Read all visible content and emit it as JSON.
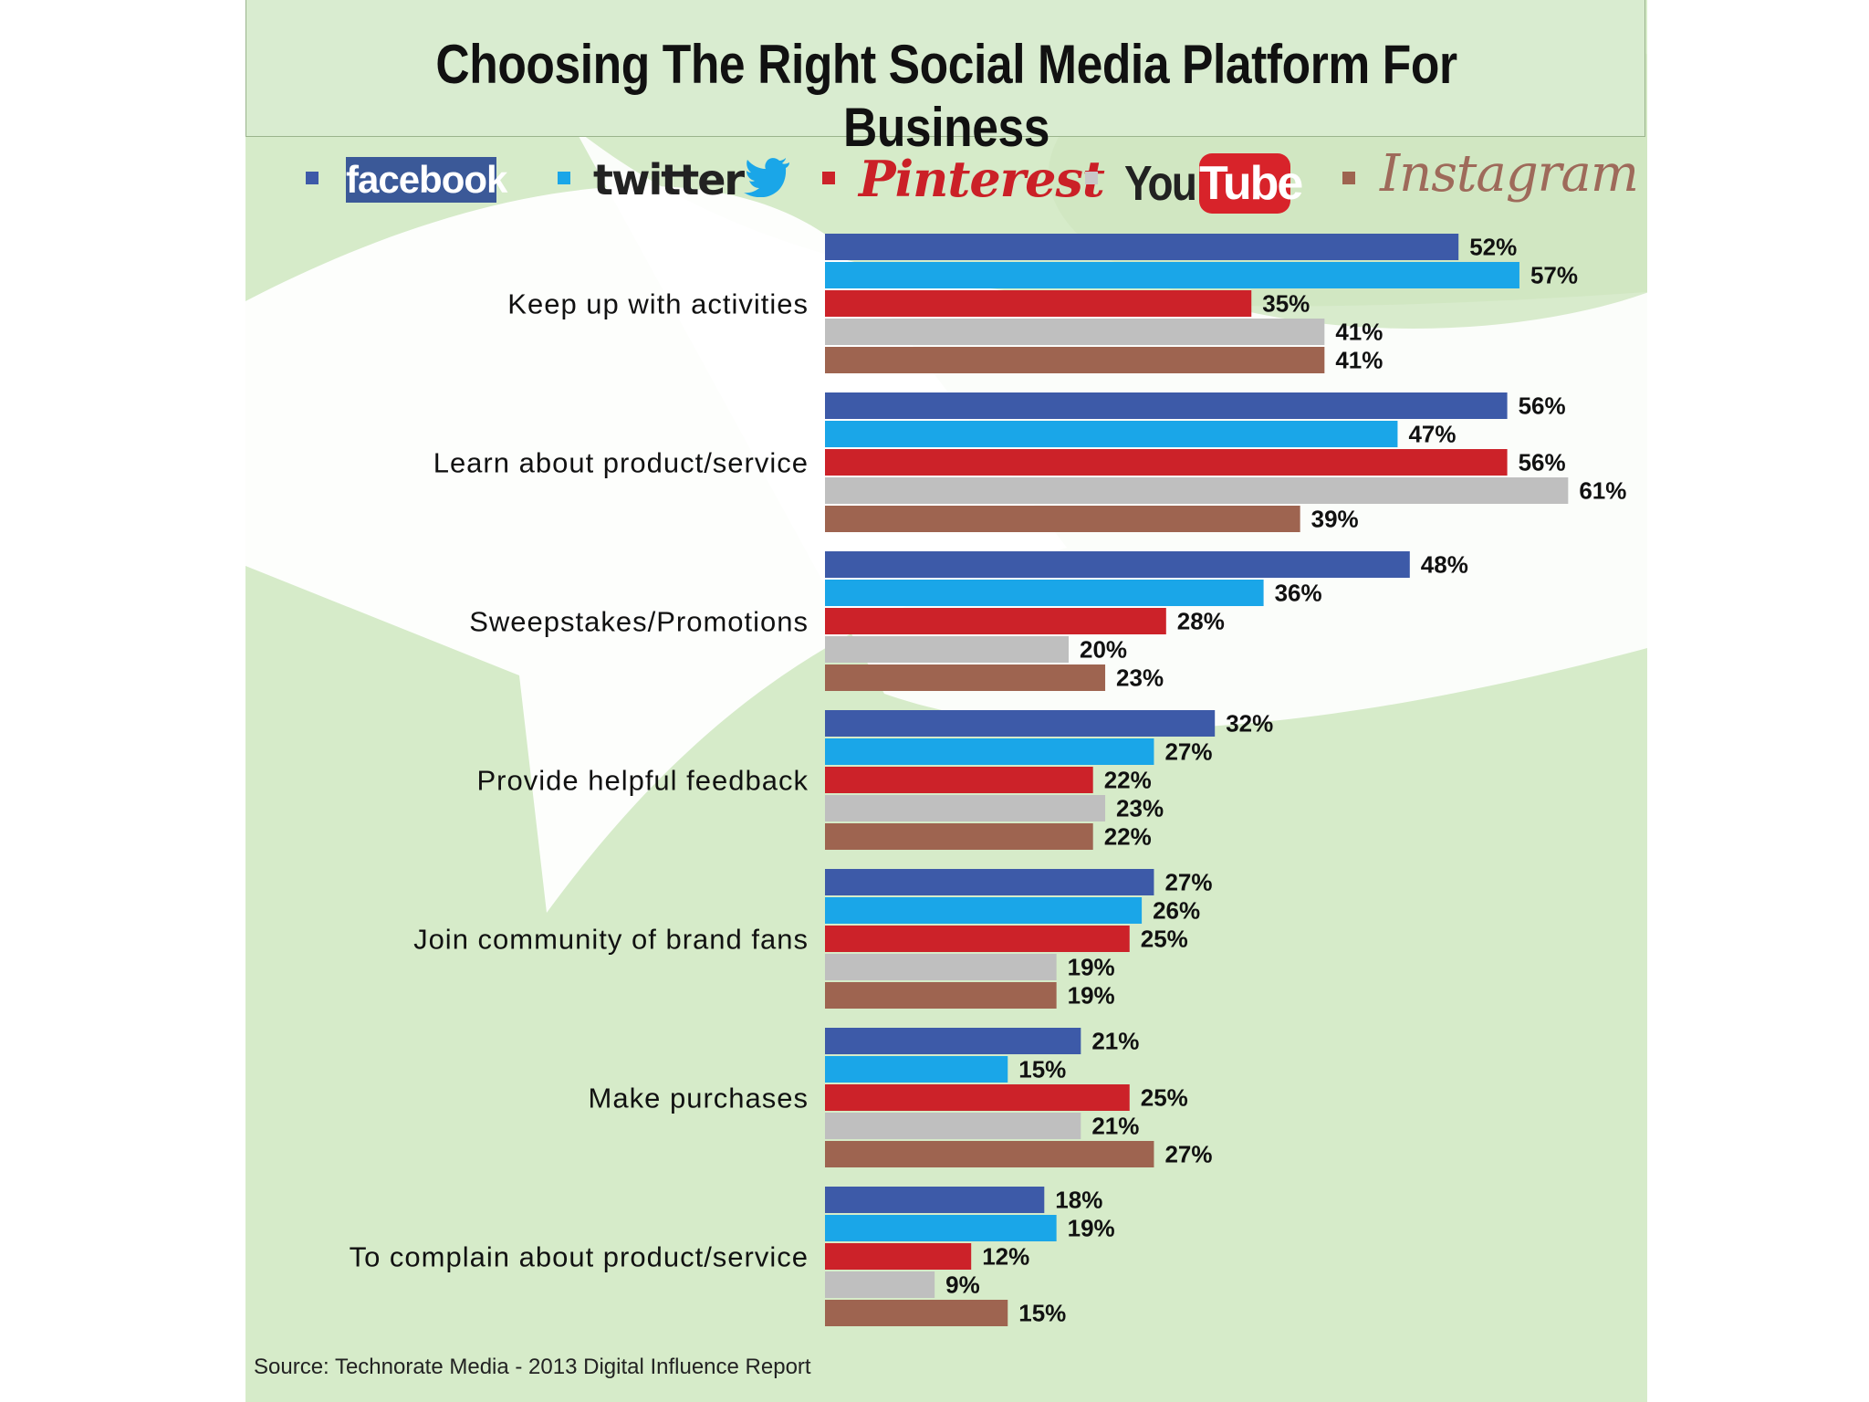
{
  "title": "Choosing The Right Social Media Platform For Business",
  "legend": {
    "facebook": "facebook",
    "twitter": "twitter",
    "pinterest": "Pinterest",
    "youtube_you": "You",
    "youtube_tube": "Tube",
    "instagram": "Instagram"
  },
  "source": "Source: Technorate Media - 2013 Digital Influence Report",
  "colors": {
    "facebook": "#3d5aa8",
    "twitter": "#1aa6e8",
    "pinterest": "#cc2229",
    "youtube": "#bfbfbf",
    "instagram": "#9e6450",
    "background": "#d6ebc9"
  },
  "chart_data": {
    "type": "bar",
    "orientation": "horizontal",
    "title": "Choosing The Right Social Media Platform For Business",
    "categories": [
      "Keep up with activities",
      "Learn about product/service",
      "Sweepstakes/Promotions",
      "Provide helpful feedback",
      "Join community of brand fans",
      "Make purchases",
      "To complain about product/service"
    ],
    "series": [
      {
        "name": "facebook",
        "color": "#3d5aa8",
        "values": [
          52,
          56,
          48,
          32,
          27,
          21,
          18
        ]
      },
      {
        "name": "twitter",
        "color": "#1aa6e8",
        "values": [
          57,
          47,
          36,
          27,
          26,
          15,
          19
        ]
      },
      {
        "name": "Pinterest",
        "color": "#cc2229",
        "values": [
          35,
          56,
          28,
          22,
          25,
          25,
          12
        ]
      },
      {
        "name": "YouTube",
        "color": "#bfbfbf",
        "values": [
          41,
          61,
          20,
          23,
          19,
          21,
          9
        ]
      },
      {
        "name": "Instagram",
        "color": "#9e6450",
        "values": [
          41,
          39,
          23,
          22,
          19,
          27,
          15
        ]
      }
    ],
    "value_suffix": "%",
    "xlim": [
      0,
      100
    ],
    "legend_position": "top"
  }
}
